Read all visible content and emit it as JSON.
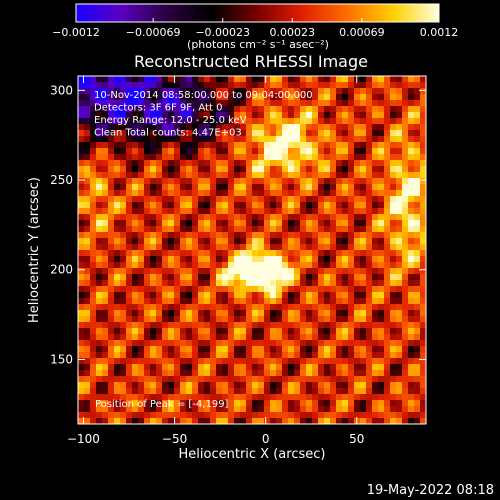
{
  "chart_data": {
    "type": "heatmap",
    "title": "Reconstructed RHESSI Image",
    "xlabel": "Heliocentric X (arcsec)",
    "ylabel": "Heliocentric Y (arcsec)",
    "xlim": [
      -103,
      88
    ],
    "ylim": [
      114,
      308
    ],
    "x_ticks": [
      -100,
      -50,
      0,
      50
    ],
    "x_tick_labels": [
      "−100",
      "−50",
      "0",
      "50"
    ],
    "y_ticks": [
      150,
      200,
      250,
      300
    ],
    "y_tick_labels": [
      "150",
      "200",
      "250",
      "300"
    ],
    "colorbar": {
      "range": [
        -0.0012,
        0.0012
      ],
      "ticks": [
        -0.0012,
        -0.00069,
        -0.00023,
        0.00023,
        0.00069,
        0.0012
      ],
      "tick_labels": [
        "−0.0012",
        "−0.00069",
        "−0.00023",
        "0.00023",
        "0.00069",
        "0.0012"
      ],
      "units": "(photons cm⁻² s⁻¹ asec⁻²)",
      "colors": [
        "#1a00ff",
        "#5a00c0",
        "#2a0040",
        "#000000",
        "#7a0000",
        "#e02000",
        "#ff7000",
        "#ffd000",
        "#ffffe0"
      ]
    },
    "annotations": [
      "10-Nov-2014 08:58:00.000 to 09:04:00.000",
      "Detectors: 3F 6F 9F, Att 0",
      "Energy Range: 12.0 - 25.0 keV",
      "Clean     Total counts: 4.47E+03"
    ],
    "peak_label": "Position of Peak = [-4,199]",
    "peak": {
      "x": -4,
      "y": 199
    }
  },
  "footer": {
    "timestamp": "19-May-2022 08:18"
  }
}
